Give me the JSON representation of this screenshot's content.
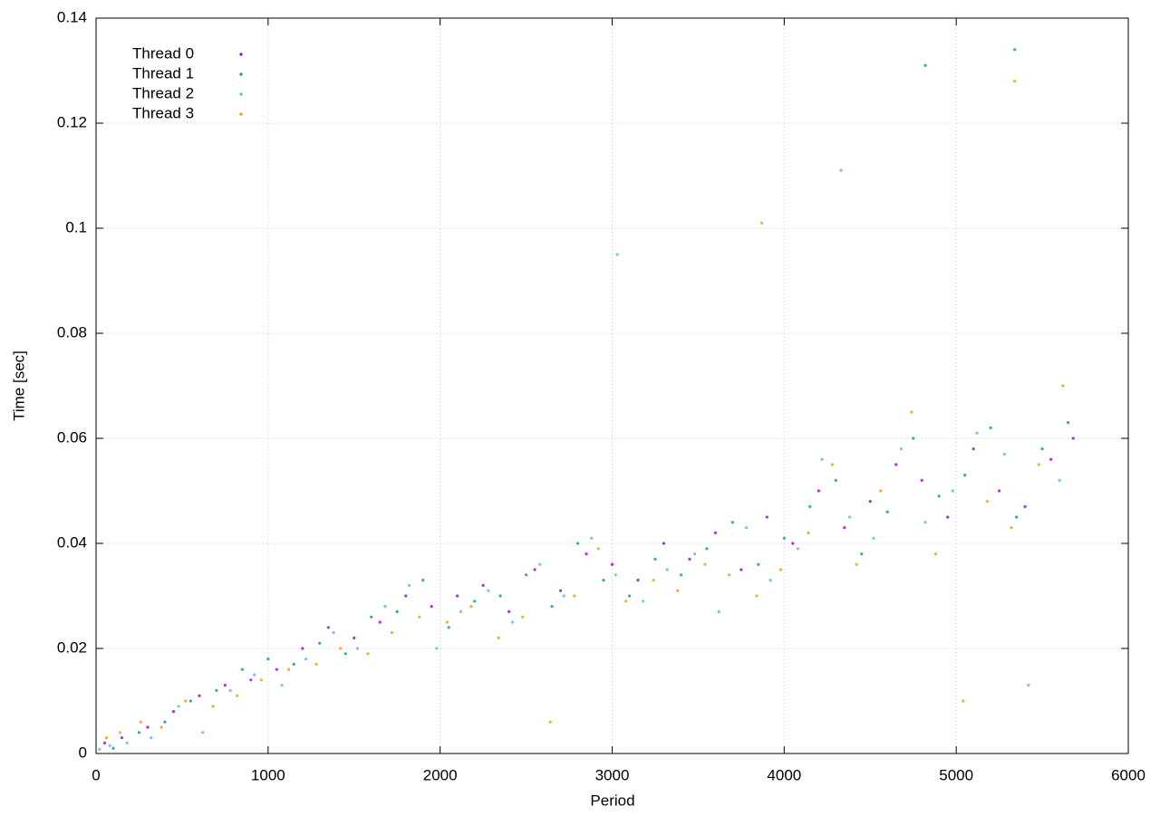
{
  "chart_data": {
    "type": "scatter",
    "x_label": "Period",
    "y_label": "Time [sec]",
    "xlim": [
      0,
      6000
    ],
    "ylim": [
      0,
      0.14
    ],
    "xticks": [
      0,
      1000,
      2000,
      3000,
      4000,
      5000,
      6000
    ],
    "yticks": [
      0,
      0.02,
      0.04,
      0.06,
      0.08,
      0.1,
      0.12,
      0.14
    ],
    "grid": true,
    "legend": "top-left",
    "series": [
      {
        "name": "Thread 0",
        "color": "#9400d3",
        "x": [
          50,
          150,
          300,
          450,
          600,
          750,
          900,
          1050,
          1200,
          1350,
          1500,
          1650,
          1800,
          1950,
          2100,
          2250,
          2400,
          2550,
          2700,
          2850,
          3000,
          3150,
          3300,
          3450,
          3600,
          3750,
          3900,
          4050,
          4200,
          4350,
          4500,
          4650,
          4800,
          4950,
          5100,
          5250,
          5400,
          5550,
          5680
        ],
        "values": [
          0.002,
          0.003,
          0.005,
          0.008,
          0.011,
          0.013,
          0.014,
          0.016,
          0.02,
          0.024,
          0.022,
          0.025,
          0.03,
          0.028,
          0.03,
          0.032,
          0.027,
          0.035,
          0.031,
          0.038,
          0.036,
          0.033,
          0.04,
          0.037,
          0.042,
          0.035,
          0.045,
          0.04,
          0.05,
          0.043,
          0.048,
          0.055,
          0.052,
          0.045,
          0.058,
          0.05,
          0.047,
          0.056,
          0.06
        ]
      },
      {
        "name": "Thread 1",
        "color": "#009e73",
        "x": [
          100,
          250,
          400,
          550,
          700,
          850,
          1000,
          1150,
          1300,
          1450,
          1600,
          1750,
          1900,
          2050,
          2200,
          2350,
          2500,
          2650,
          2800,
          2950,
          3100,
          3250,
          3400,
          3550,
          3700,
          3850,
          4000,
          4150,
          4300,
          4450,
          4600,
          4750,
          4900,
          5050,
          5200,
          5350,
          5500,
          5650,
          4820,
          5340
        ],
        "values": [
          0.001,
          0.004,
          0.006,
          0.01,
          0.012,
          0.016,
          0.018,
          0.017,
          0.021,
          0.019,
          0.026,
          0.027,
          0.033,
          0.024,
          0.029,
          0.03,
          0.034,
          0.028,
          0.04,
          0.033,
          0.03,
          0.037,
          0.034,
          0.039,
          0.044,
          0.036,
          0.041,
          0.047,
          0.052,
          0.038,
          0.046,
          0.06,
          0.049,
          0.053,
          0.062,
          0.045,
          0.058,
          0.063,
          0.131,
          0.134
        ]
      },
      {
        "name": "Thread 2",
        "color": "#56b4e9",
        "x": [
          20,
          80,
          180,
          320,
          480,
          620,
          780,
          920,
          1080,
          1220,
          1380,
          1520,
          1680,
          1820,
          1980,
          2120,
          2280,
          2420,
          2580,
          2720,
          2880,
          3020,
          3180,
          3320,
          3480,
          3620,
          3780,
          3920,
          4080,
          4220,
          4380,
          4520,
          4680,
          4820,
          4980,
          5120,
          5280,
          5420,
          5600,
          3030,
          4330
        ],
        "values": [
          0.0008,
          0.0015,
          0.002,
          0.003,
          0.009,
          0.004,
          0.012,
          0.015,
          0.013,
          0.018,
          0.023,
          0.02,
          0.028,
          0.032,
          0.02,
          0.027,
          0.031,
          0.025,
          0.036,
          0.03,
          0.041,
          0.034,
          0.029,
          0.035,
          0.038,
          0.027,
          0.043,
          0.033,
          0.039,
          0.056,
          0.045,
          0.041,
          0.058,
          0.044,
          0.05,
          0.061,
          0.057,
          0.013,
          0.052,
          0.095,
          0.111
        ]
      },
      {
        "name": "Thread 3",
        "color": "#e69f00",
        "x": [
          60,
          140,
          260,
          380,
          520,
          680,
          820,
          960,
          1120,
          1280,
          1420,
          1580,
          1720,
          1880,
          2040,
          2180,
          2340,
          2480,
          2640,
          2780,
          2920,
          3080,
          3240,
          3380,
          3540,
          3680,
          3840,
          3980,
          4140,
          4280,
          4420,
          4560,
          4740,
          4880,
          5040,
          5180,
          5320,
          5480,
          5620,
          3870,
          5340
        ],
        "values": [
          0.003,
          0.004,
          0.006,
          0.005,
          0.01,
          0.009,
          0.011,
          0.014,
          0.016,
          0.017,
          0.02,
          0.019,
          0.023,
          0.026,
          0.025,
          0.028,
          0.022,
          0.026,
          0.006,
          0.03,
          0.039,
          0.029,
          0.033,
          0.031,
          0.036,
          0.034,
          0.03,
          0.035,
          0.042,
          0.055,
          0.036,
          0.05,
          0.065,
          0.038,
          0.01,
          0.048,
          0.043,
          0.055,
          0.07,
          0.101,
          0.128
        ]
      }
    ]
  }
}
